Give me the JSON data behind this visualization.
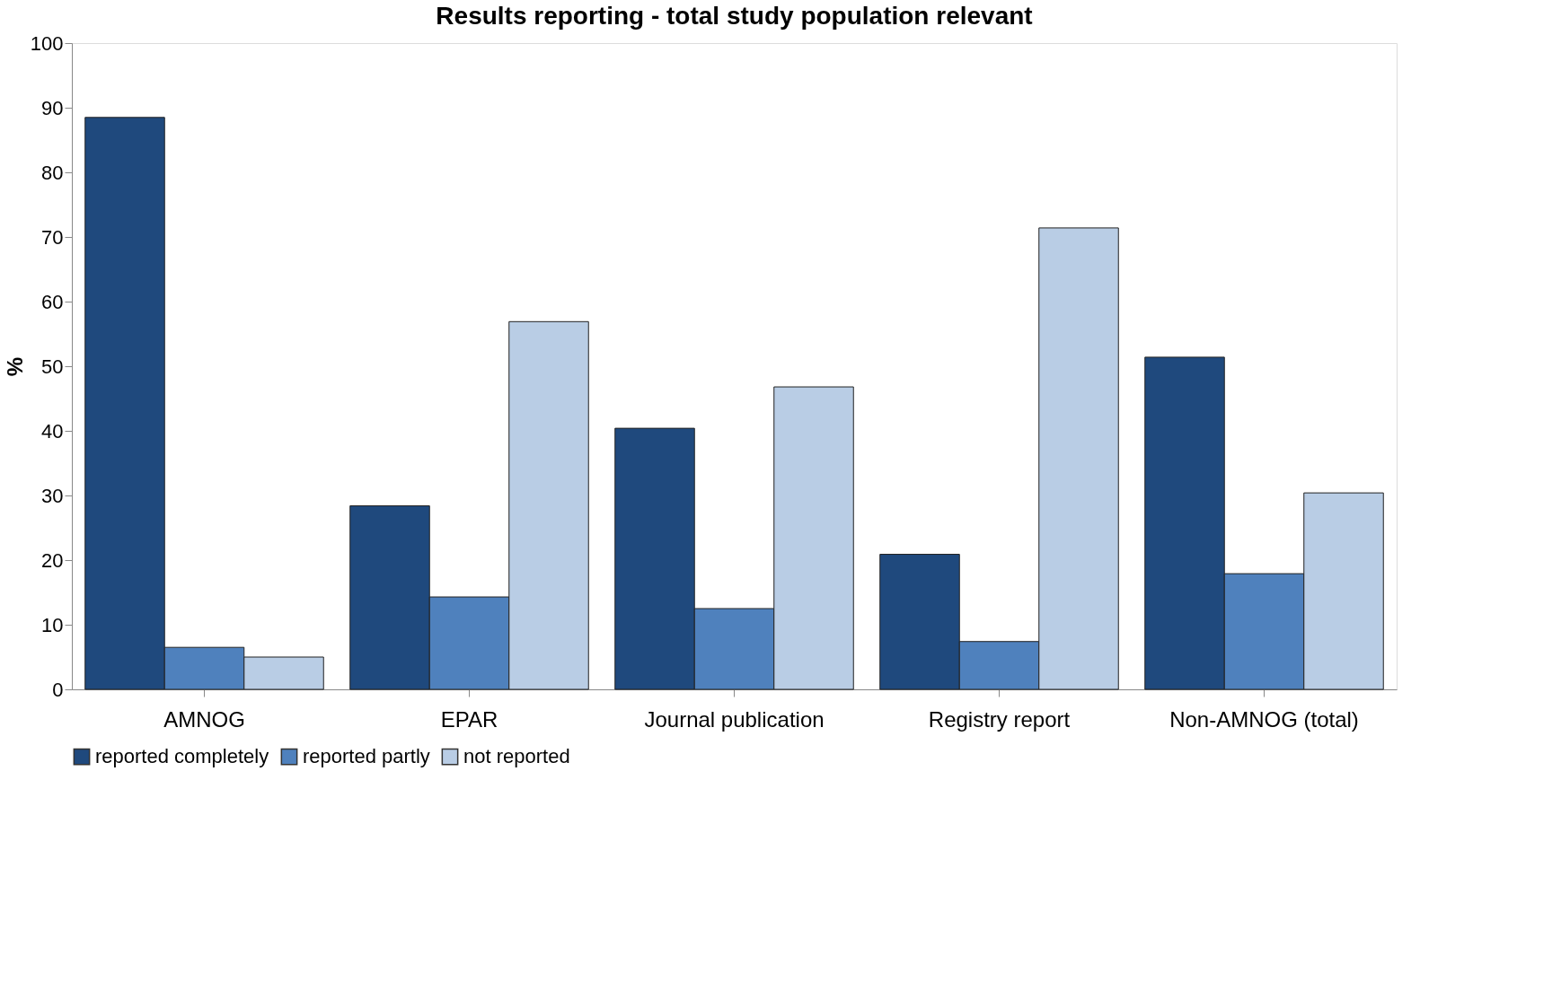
{
  "chart_data": {
    "type": "bar",
    "title": "Results reporting - total study population relevant",
    "ylabel": "%",
    "categories": [
      "AMNOG",
      "EPAR",
      "Journal publication",
      "Registry report",
      "Non-AMNOG (total)"
    ],
    "series": [
      {
        "name": "reported completely",
        "color": "#1f497d",
        "values": [
          88.5,
          28.4,
          40.4,
          20.9,
          51.4
        ]
      },
      {
        "name": "reported partly",
        "color": "#4f81bd",
        "values": [
          6.5,
          14.3,
          12.5,
          7.4,
          17.9
        ]
      },
      {
        "name": "not reported",
        "color": "#b9cde5",
        "values": [
          5.0,
          56.9,
          46.8,
          71.4,
          30.4
        ]
      }
    ],
    "ylim": [
      0,
      100
    ],
    "yticks": [
      0,
      10,
      20,
      30,
      40,
      50,
      60,
      70,
      80,
      90,
      100
    ],
    "grid": false,
    "legend": "bottom"
  }
}
